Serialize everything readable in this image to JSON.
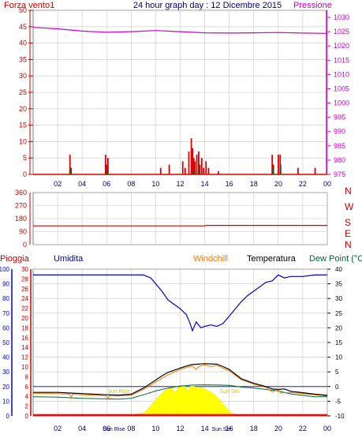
{
  "header": {
    "wind_label": "Forza vento1",
    "title": "24 hour graph day : 12 Dicembre 2015",
    "pressure_label": "Pressione"
  },
  "legend_bottom": {
    "rain": "Pioggia",
    "humidity": "Umidita",
    "windchill": "Windchill",
    "temperature": "Temperatura",
    "dewpoint": "Dew Point (°C"
  },
  "compass": [
    "N",
    "W",
    "S",
    "E",
    "N"
  ],
  "sun_labels": {
    "sun_rise_top": "Sun Rise",
    "sun_set_top": "Sun Set",
    "sun_rise_bottom": "Sun Rise",
    "sun_set_bottom": "Sun Set"
  },
  "colors": {
    "wind": "#dd0000",
    "pressure": "#cc00cc",
    "humidity": "#0000cc",
    "windchill": "#ff7700",
    "temperature": "#000000",
    "dewpoint": "#006633",
    "rain": "#ff0000",
    "solar": "#ffff00",
    "grid": "#c8c8c8",
    "axis_blue": "#0000cc",
    "axis_green": "#006633"
  },
  "chart_data": [
    {
      "type": "bar",
      "title": "24 hour graph day : 12 Dicembre 2015",
      "x_ticks": [
        "02",
        "04",
        "06",
        "08",
        "10",
        "12",
        "14",
        "16",
        "18",
        "20",
        "22",
        "00"
      ],
      "y_left": {
        "label": "Forza vento1",
        "ticks": [
          0,
          5,
          10,
          15,
          20,
          25,
          30,
          35,
          40,
          45,
          50
        ],
        "range": [
          0,
          50
        ]
      },
      "y_right": {
        "label": "Pressione",
        "ticks": [
          975,
          980,
          985,
          990,
          995,
          1000,
          1005,
          1010,
          1015,
          1020,
          1025,
          1030
        ],
        "range": [
          975,
          1032.5
        ]
      },
      "wind_gusts": [
        {
          "h": 3.0,
          "v": 6
        },
        {
          "h": 3.1,
          "v": 2
        },
        {
          "h": 5.9,
          "v": 6
        },
        {
          "h": 6.0,
          "v": 3
        },
        {
          "h": 6.1,
          "v": 5
        },
        {
          "h": 10.4,
          "v": 2
        },
        {
          "h": 11.1,
          "v": 3
        },
        {
          "h": 12.2,
          "v": 4
        },
        {
          "h": 12.4,
          "v": 2
        },
        {
          "h": 12.7,
          "v": 7
        },
        {
          "h": 12.9,
          "v": 11
        },
        {
          "h": 13.0,
          "v": 8
        },
        {
          "h": 13.1,
          "v": 5
        },
        {
          "h": 13.2,
          "v": 4
        },
        {
          "h": 13.35,
          "v": 6
        },
        {
          "h": 13.5,
          "v": 7
        },
        {
          "h": 13.6,
          "v": 3
        },
        {
          "h": 13.75,
          "v": 5
        },
        {
          "h": 13.9,
          "v": 2
        },
        {
          "h": 14.1,
          "v": 4
        },
        {
          "h": 14.3,
          "v": 2
        },
        {
          "h": 15.1,
          "v": 1
        },
        {
          "h": 19.5,
          "v": 6
        },
        {
          "h": 19.6,
          "v": 3
        },
        {
          "h": 20.0,
          "v": 6
        },
        {
          "h": 20.15,
          "v": 6
        },
        {
          "h": 21.6,
          "v": 2
        },
        {
          "h": 23.0,
          "v": 2
        }
      ],
      "wind_avg": [
        {
          "h": 3.1,
          "v": 2
        },
        {
          "h": 6.1,
          "v": 1
        },
        {
          "h": 13.0,
          "v": 1
        },
        {
          "h": 13.5,
          "v": 1
        },
        {
          "h": 19.6,
          "v": 2
        },
        {
          "h": 20.2,
          "v": 3
        }
      ],
      "pressure": [
        [
          0,
          1026.5
        ],
        [
          2,
          1026.0
        ],
        [
          4,
          1025.2
        ],
        [
          6,
          1024.8
        ],
        [
          8,
          1025.0
        ],
        [
          10,
          1025.4
        ],
        [
          12,
          1025.0
        ],
        [
          14,
          1024.6
        ],
        [
          16,
          1024.5
        ],
        [
          18,
          1024.6
        ],
        [
          20,
          1024.7
        ],
        [
          22,
          1024.5
        ],
        [
          24,
          1024.4
        ]
      ]
    },
    {
      "type": "line",
      "y_left": {
        "ticks": [
          0,
          90,
          180,
          270,
          360
        ],
        "range": [
          0,
          360
        ]
      },
      "y_right": {
        "labels": [
          "N",
          "W",
          "S",
          "E",
          "N"
        ]
      },
      "wind_direction": [
        [
          0,
          130
        ],
        [
          14,
          130
        ],
        [
          14.1,
          133
        ],
        [
          24,
          133
        ]
      ]
    },
    {
      "type": "line",
      "x_ticks": [
        "02",
        "04",
        "06",
        "08",
        "10",
        "12",
        "14",
        "16",
        "18",
        "20",
        "22",
        "00"
      ],
      "y_humidity": {
        "label": "Umidita",
        "ticks": [
          0,
          10,
          20,
          30,
          40,
          50,
          60,
          70,
          80,
          90,
          100
        ],
        "range": [
          0,
          100
        ]
      },
      "y_rain": {
        "label": "Pioggia",
        "ticks": [
          0,
          2,
          4,
          6,
          8,
          10,
          12,
          14,
          16,
          18,
          20,
          22,
          24,
          26,
          28,
          30
        ],
        "range": [
          0,
          30
        ]
      },
      "y_temp": {
        "ticks": [
          40,
          35,
          30,
          25,
          20,
          15,
          10,
          5,
          0,
          -5,
          -10
        ],
        "range": [
          -10,
          40
        ]
      },
      "humidity": [
        [
          0,
          96
        ],
        [
          1,
          96
        ],
        [
          2,
          96
        ],
        [
          4,
          96
        ],
        [
          6,
          96
        ],
        [
          7,
          96
        ],
        [
          8,
          96
        ],
        [
          9,
          96
        ],
        [
          9.6,
          94
        ],
        [
          10,
          90
        ],
        [
          10.5,
          85
        ],
        [
          11,
          79
        ],
        [
          11.5,
          76
        ],
        [
          12,
          73
        ],
        [
          12.5,
          69
        ],
        [
          12.8,
          63
        ],
        [
          13,
          58
        ],
        [
          13.3,
          64
        ],
        [
          13.7,
          60
        ],
        [
          14,
          61
        ],
        [
          14.5,
          62
        ],
        [
          15,
          61
        ],
        [
          15.5,
          63
        ],
        [
          16,
          68
        ],
        [
          16.5,
          73
        ],
        [
          17,
          78
        ],
        [
          17.5,
          82
        ],
        [
          18,
          85
        ],
        [
          18.5,
          88
        ],
        [
          19,
          91
        ],
        [
          19.5,
          92
        ],
        [
          20,
          96
        ],
        [
          20.5,
          94
        ],
        [
          21,
          95
        ],
        [
          22,
          95
        ],
        [
          23,
          96
        ],
        [
          24,
          96
        ]
      ],
      "temperature": [
        [
          0,
          -2.0
        ],
        [
          1,
          -2.0
        ],
        [
          2,
          -2.0
        ],
        [
          3,
          -2.2
        ],
        [
          4,
          -2.4
        ],
        [
          5,
          -2.6
        ],
        [
          6,
          -2.8
        ],
        [
          7,
          -2.9
        ],
        [
          8,
          -2.6
        ],
        [
          9,
          -0.5
        ],
        [
          9.5,
          0.8
        ],
        [
          10,
          2.2
        ],
        [
          10.5,
          3.6
        ],
        [
          11,
          4.8
        ],
        [
          12,
          6.3
        ],
        [
          12.5,
          7.0
        ],
        [
          13,
          7.5
        ],
        [
          14,
          7.8
        ],
        [
          15,
          7.6
        ],
        [
          15.5,
          6.8
        ],
        [
          16,
          5.8
        ],
        [
          17,
          2.6
        ],
        [
          18,
          1.1
        ],
        [
          19,
          0.0
        ],
        [
          19.5,
          -0.8
        ],
        [
          20,
          -1.0
        ],
        [
          20.5,
          -0.8
        ],
        [
          21,
          -1.6
        ],
        [
          22,
          -2.1
        ],
        [
          23,
          -2.6
        ],
        [
          24,
          -3.0
        ]
      ],
      "windchill": [
        [
          0,
          -2.3
        ],
        [
          1,
          -2.3
        ],
        [
          2,
          -2.4
        ],
        [
          3,
          -2.6
        ],
        [
          3.1,
          -4.0
        ],
        [
          3.2,
          -2.6
        ],
        [
          4,
          -2.8
        ],
        [
          5,
          -2.9
        ],
        [
          6,
          -3.2
        ],
        [
          6.1,
          -4.2
        ],
        [
          6.2,
          -3.2
        ],
        [
          7,
          -3.2
        ],
        [
          8,
          -3.0
        ],
        [
          9,
          -1.0
        ],
        [
          10,
          1.5
        ],
        [
          11,
          4.0
        ],
        [
          12,
          5.8
        ],
        [
          12.5,
          6.5
        ],
        [
          13,
          7.0
        ],
        [
          13.3,
          5.8
        ],
        [
          13.5,
          6.8
        ],
        [
          14,
          7.4
        ],
        [
          14.5,
          6.8
        ],
        [
          15,
          7.2
        ],
        [
          16,
          5.3
        ],
        [
          17,
          2.3
        ],
        [
          18,
          0.8
        ],
        [
          19,
          -0.3
        ],
        [
          19.5,
          -1.8
        ],
        [
          20,
          -1.2
        ],
        [
          20.2,
          -2.2
        ],
        [
          21,
          -2.0
        ],
        [
          22,
          -2.4
        ],
        [
          23,
          -2.8
        ],
        [
          24,
          -3.2
        ]
      ],
      "dewpoint": [
        [
          0,
          -3.5
        ],
        [
          2,
          -3.6
        ],
        [
          4,
          -4.0
        ],
        [
          6,
          -4.2
        ],
        [
          7,
          -4.3
        ],
        [
          8,
          -4.0
        ],
        [
          9,
          -2.8
        ],
        [
          10,
          -1.5
        ],
        [
          11,
          -0.5
        ],
        [
          12,
          0.2
        ],
        [
          13,
          0.5
        ],
        [
          14,
          0.6
        ],
        [
          15,
          0.5
        ],
        [
          16,
          0.4
        ],
        [
          17,
          -0.2
        ],
        [
          18,
          -0.5
        ],
        [
          19,
          -1.0
        ],
        [
          20,
          -1.5
        ],
        [
          21,
          -2.5
        ],
        [
          22,
          -3.0
        ],
        [
          23,
          -3.5
        ],
        [
          24,
          -3.5
        ]
      ],
      "solar": [
        [
          8.0,
          0
        ],
        [
          8.7,
          0.5
        ],
        [
          9.2,
          1.5
        ],
        [
          9.7,
          4.0
        ],
        [
          10.2,
          6.5
        ],
        [
          10.7,
          8.5
        ],
        [
          11.0,
          9.2
        ],
        [
          11.3,
          9.8
        ],
        [
          11.6,
          7.8
        ],
        [
          11.8,
          9.6
        ],
        [
          12.1,
          10.0
        ],
        [
          12.4,
          10.2
        ],
        [
          12.6,
          8.2
        ],
        [
          12.8,
          10.0
        ],
        [
          13.1,
          10.1
        ],
        [
          13.4,
          9.4
        ],
        [
          13.7,
          9.8
        ],
        [
          14.0,
          9.2
        ],
        [
          14.4,
          8.3
        ],
        [
          14.8,
          7.3
        ],
        [
          15.2,
          5.6
        ],
        [
          15.6,
          3.6
        ],
        [
          16.0,
          1.6
        ],
        [
          16.3,
          0.6
        ],
        [
          16.6,
          0
        ]
      ],
      "rain": [
        [
          0,
          0
        ],
        [
          24,
          0
        ]
      ],
      "sun_rise_h": 8.0,
      "sun_set_h": 16.5
    }
  ]
}
